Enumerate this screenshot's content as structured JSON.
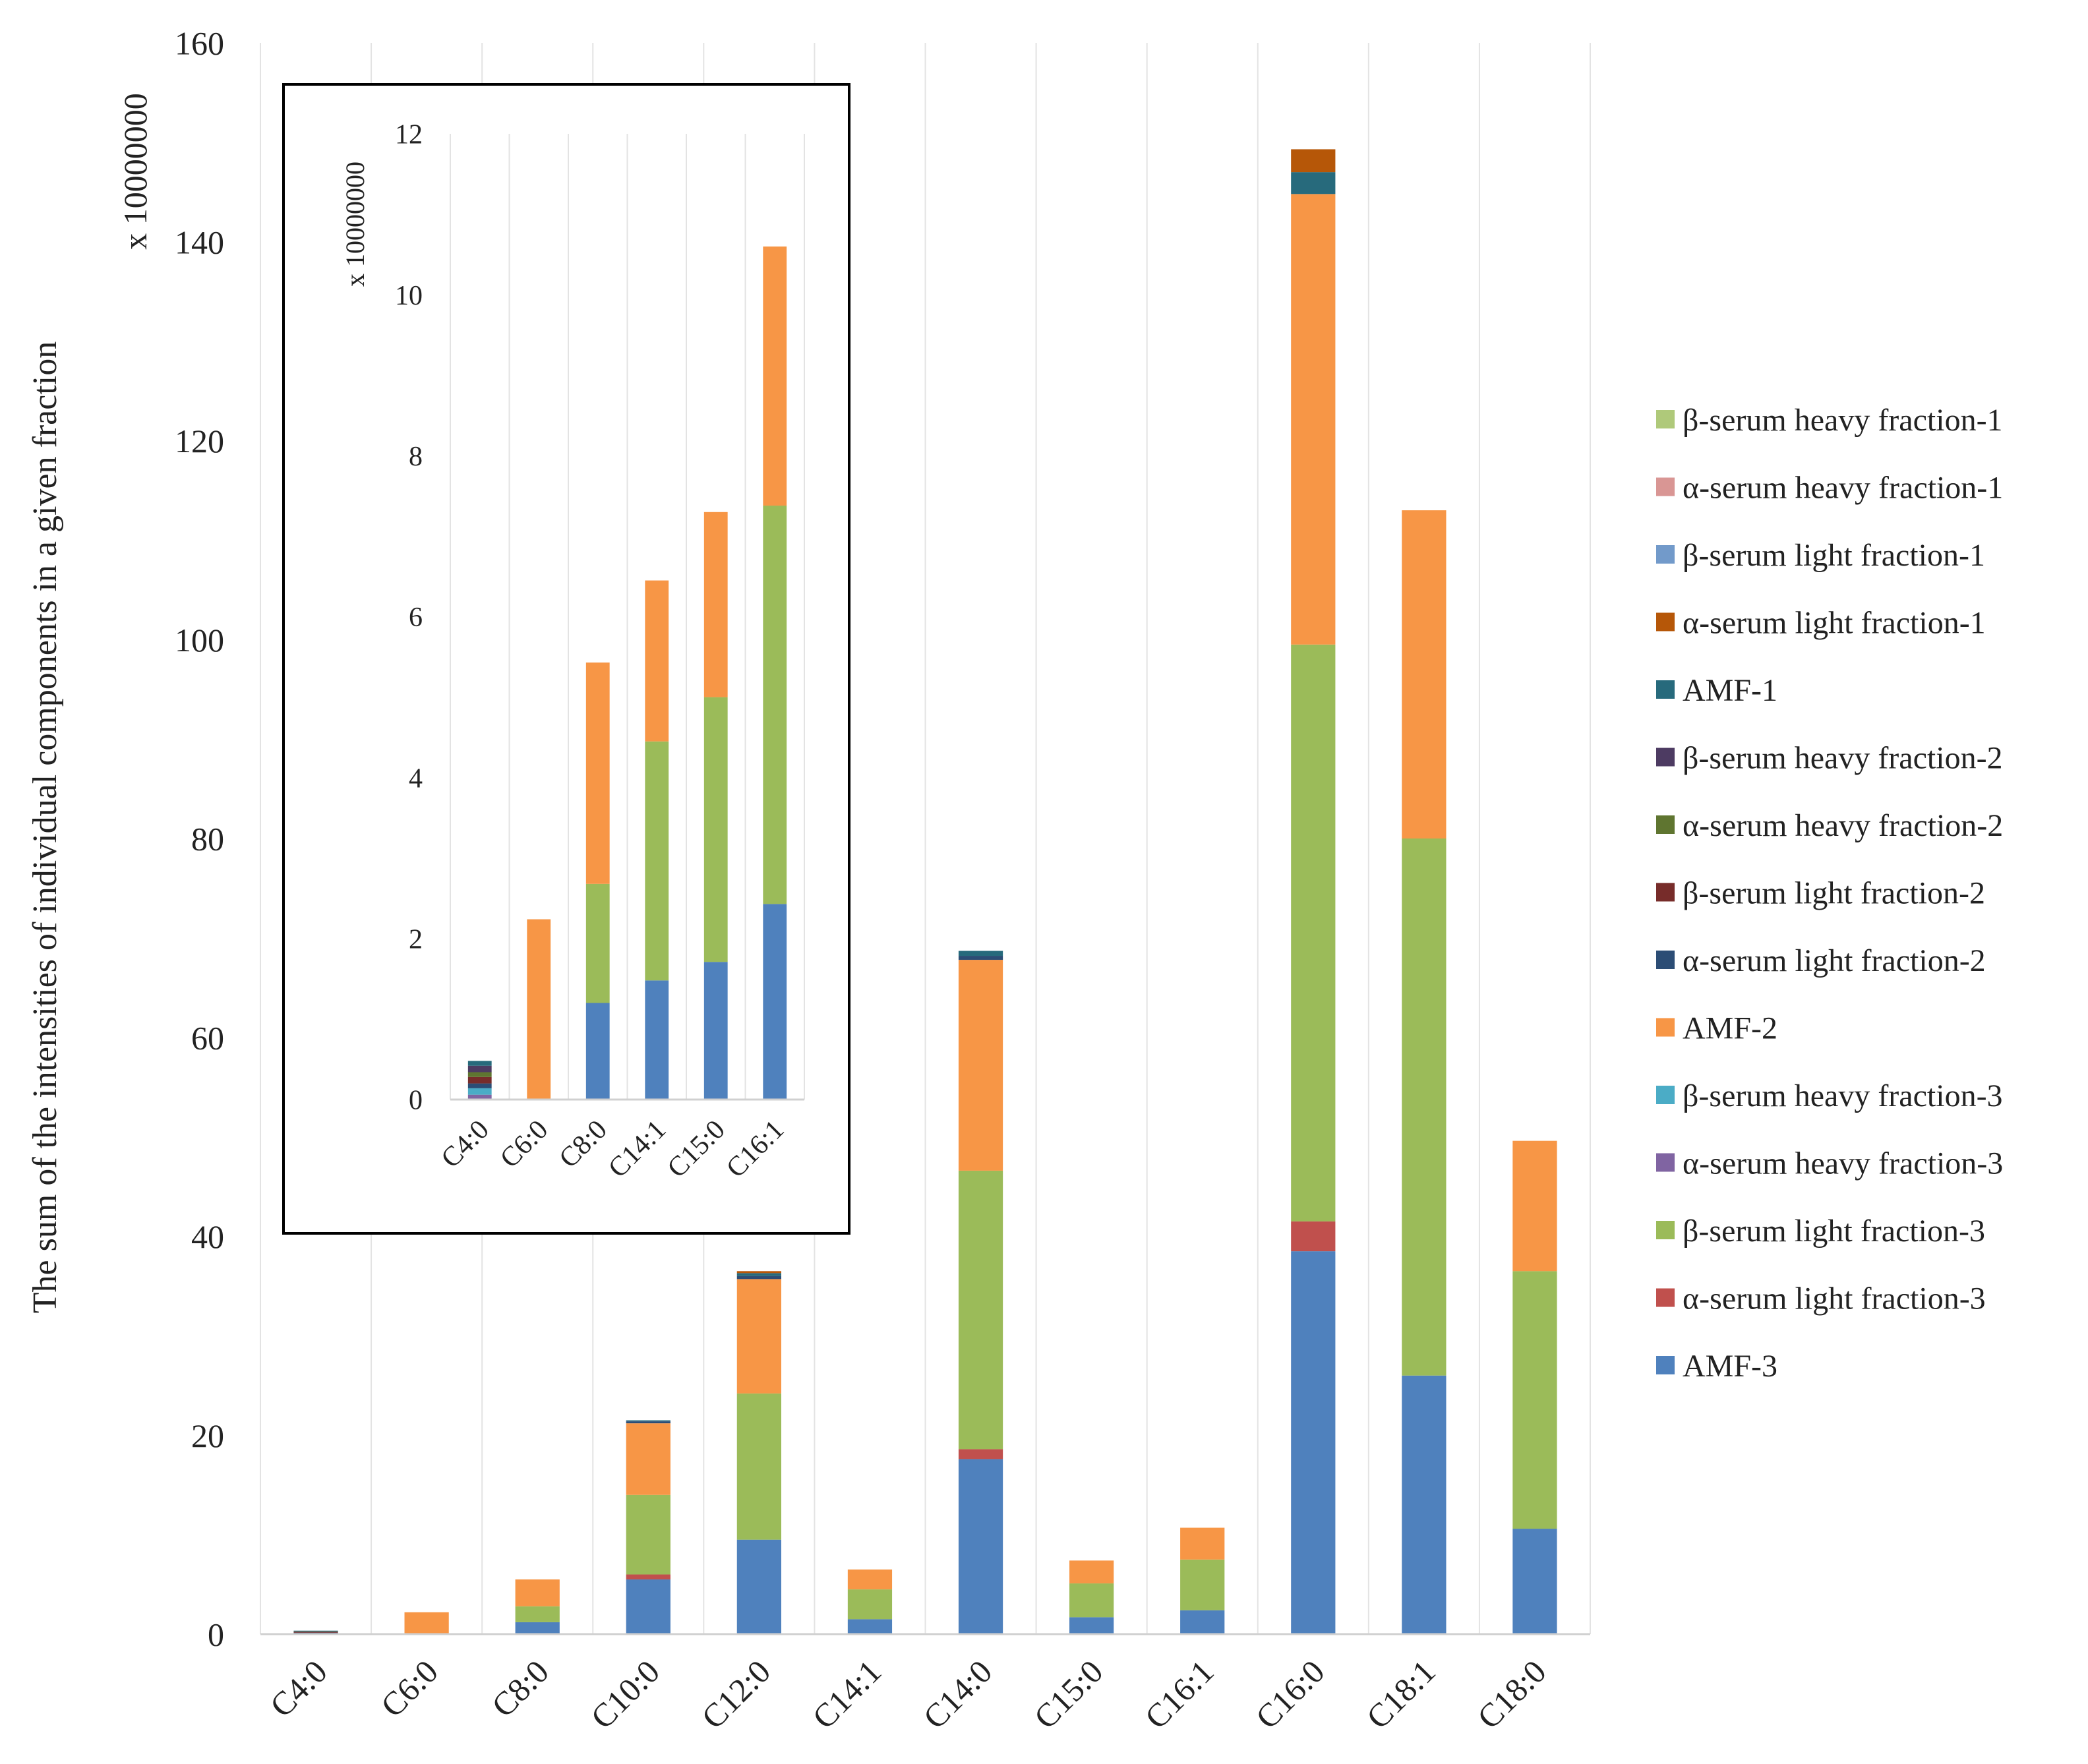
{
  "chart_data": [
    {
      "type": "bar",
      "stacked": true,
      "title": "",
      "xlabel": "",
      "ylabel": "The sum of the intensities of individual components in a given fraction",
      "yunit": "x 10000000",
      "ylim": [
        0,
        160
      ],
      "yticks": [
        0,
        20,
        40,
        60,
        80,
        100,
        120,
        140,
        160
      ],
      "grid": "vertical",
      "legend_position": "right",
      "categories": [
        "C4:0",
        "C6:0",
        "C8:0",
        "C10:0",
        "C12:0",
        "C14:1",
        "C14:0",
        "C15:0",
        "C16:1",
        "C16:0",
        "C18:1",
        "C18:0"
      ],
      "series": [
        {
          "name": "AMF-3",
          "color": "#4f81bd",
          "values": [
            0.0,
            0.0,
            1.2,
            5.5,
            9.5,
            1.5,
            17.6,
            1.7,
            2.4,
            38.5,
            26.0,
            10.6
          ]
        },
        {
          "name": "α-serum light fraction-3",
          "color": "#c0504d",
          "values": [
            0.0,
            0.0,
            0.0,
            0.5,
            0.0,
            0.0,
            1.0,
            0.0,
            0.0,
            3.0,
            0.0,
            0.0
          ]
        },
        {
          "name": "β-serum light fraction-3",
          "color": "#9bbb59",
          "values": [
            0.0,
            0.0,
            1.6,
            8.0,
            14.7,
            3.0,
            28.0,
            3.4,
            5.1,
            58.0,
            54.0,
            25.9
          ]
        },
        {
          "name": "α-serum heavy fraction-3",
          "color": "#8064a2",
          "values": [
            0.05,
            0.0,
            0.0,
            0.0,
            0.0,
            0.0,
            0.0,
            0.0,
            0.0,
            0.0,
            0.0,
            0.0
          ]
        },
        {
          "name": "β-serum heavy fraction-3",
          "color": "#4bacc6",
          "values": [
            0.05,
            0.0,
            0.0,
            0.0,
            0.0,
            0.0,
            0.0,
            0.0,
            0.0,
            0.0,
            0.0,
            0.0
          ]
        },
        {
          "name": "AMF-2",
          "color": "#f79646",
          "values": [
            0.0,
            2.2,
            2.7,
            7.2,
            11.5,
            2.0,
            21.2,
            2.3,
            3.2,
            45.3,
            33.0,
            13.1
          ]
        },
        {
          "name": "α-serum light fraction-2",
          "color": "#2c4d75",
          "values": [
            0.05,
            0.0,
            0.0,
            0.2,
            0.3,
            0.0,
            0.4,
            0.0,
            0.0,
            0.0,
            0.0,
            0.0
          ]
        },
        {
          "name": "β-serum light fraction-2",
          "color": "#772c2a",
          "values": [
            0.05,
            0.0,
            0.0,
            0.0,
            0.0,
            0.0,
            0.0,
            0.0,
            0.0,
            0.0,
            0.0,
            0.0
          ]
        },
        {
          "name": "α-serum heavy fraction-2",
          "color": "#5f7530",
          "values": [
            0.05,
            0.0,
            0.0,
            0.0,
            0.0,
            0.0,
            0.0,
            0.0,
            0.0,
            0.0,
            0.0,
            0.0
          ]
        },
        {
          "name": "β-serum heavy fraction-2",
          "color": "#4d3b62",
          "values": [
            0.05,
            0.0,
            0.0,
            0.0,
            0.0,
            0.0,
            0.0,
            0.0,
            0.0,
            0.0,
            0.0,
            0.0
          ]
        },
        {
          "name": "AMF-1",
          "color": "#276a7c",
          "values": [
            0.05,
            0.0,
            0.0,
            0.1,
            0.3,
            0.0,
            0.5,
            0.0,
            0.0,
            2.2,
            0.0,
            0.0
          ]
        },
        {
          "name": "α-serum light fraction-1",
          "color": "#b65708",
          "values": [
            0.0,
            0.0,
            0.0,
            0.0,
            0.2,
            0.0,
            0.0,
            0.0,
            0.0,
            2.3,
            0.0,
            0.0
          ]
        },
        {
          "name": "β-serum light fraction-1",
          "color": "#729aca",
          "values": [
            0.0,
            0.0,
            0.0,
            0.0,
            0.0,
            0.0,
            0.0,
            0.0,
            0.0,
            0.0,
            0.0,
            0.0
          ]
        },
        {
          "name": "α-serum heavy fraction-1",
          "color": "#d99694",
          "values": [
            0.0,
            0.0,
            0.0,
            0.0,
            0.0,
            0.0,
            0.0,
            0.0,
            0.0,
            0.0,
            0.0,
            0.0
          ]
        },
        {
          "name": "β-serum heavy fraction-1",
          "color": "#afc97a",
          "values": [
            0.0,
            0.0,
            0.0,
            0.0,
            0.0,
            0.0,
            0.0,
            0.0,
            0.0,
            0.0,
            0.0,
            0.0
          ]
        }
      ]
    },
    {
      "type": "bar",
      "stacked": true,
      "inset": true,
      "title": "",
      "ylabel": "",
      "yunit": "x 10000000",
      "ylim": [
        0,
        12
      ],
      "yticks": [
        0,
        2,
        4,
        6,
        8,
        10,
        12
      ],
      "grid": "vertical",
      "categories": [
        "C4:0",
        "C6:0",
        "C8:0",
        "C14:1",
        "C15:0",
        "C16:1"
      ],
      "series": [
        {
          "name": "AMF-3",
          "color": "#4f81bd",
          "values": [
            0.0,
            0.0,
            1.2,
            1.48,
            1.71,
            2.43
          ]
        },
        {
          "name": "α-serum light fraction-3",
          "color": "#c0504d",
          "values": [
            0.0,
            0.0,
            0.0,
            0.0,
            0.0,
            0.0
          ]
        },
        {
          "name": "β-serum light fraction-3",
          "color": "#9bbb59",
          "values": [
            0.0,
            0.0,
            1.48,
            2.97,
            3.29,
            4.95
          ]
        },
        {
          "name": "α-serum heavy fraction-3",
          "color": "#8064a2",
          "values": [
            0.06,
            0.0,
            0.0,
            0.0,
            0.0,
            0.0
          ]
        },
        {
          "name": "β-serum heavy fraction-3",
          "color": "#4bacc6",
          "values": [
            0.08,
            0.0,
            0.0,
            0.0,
            0.0,
            0.0
          ]
        },
        {
          "name": "AMF-2",
          "color": "#f79646",
          "values": [
            0.0,
            2.24,
            2.75,
            2.0,
            2.3,
            3.22
          ]
        },
        {
          "name": "α-serum light fraction-2",
          "color": "#2c4d75",
          "values": [
            0.06,
            0.0,
            0.0,
            0.0,
            0.0,
            0.0
          ]
        },
        {
          "name": "β-serum light fraction-2",
          "color": "#772c2a",
          "values": [
            0.08,
            0.0,
            0.0,
            0.0,
            0.0,
            0.0
          ]
        },
        {
          "name": "α-serum heavy fraction-2",
          "color": "#5f7530",
          "values": [
            0.06,
            0.0,
            0.0,
            0.0,
            0.0,
            0.0
          ]
        },
        {
          "name": "β-serum heavy fraction-2",
          "color": "#4d3b62",
          "values": [
            0.08,
            0.0,
            0.0,
            0.0,
            0.0,
            0.0
          ]
        },
        {
          "name": "AMF-1",
          "color": "#276a7c",
          "values": [
            0.06,
            0.0,
            0.0,
            0.0,
            0.0,
            0.0
          ]
        }
      ]
    }
  ],
  "legend": [
    {
      "label": "β-serum heavy fraction-1",
      "color": "#afc97a"
    },
    {
      "label": "α-serum heavy fraction-1",
      "color": "#d99694"
    },
    {
      "label": "β-serum light fraction-1",
      "color": "#729aca"
    },
    {
      "label": "α-serum light fraction-1",
      "color": "#b65708"
    },
    {
      "label": "AMF-1",
      "color": "#276a7c"
    },
    {
      "label": "β-serum heavy fraction-2",
      "color": "#4d3b62"
    },
    {
      "label": "α-serum heavy fraction-2",
      "color": "#5f7530"
    },
    {
      "label": "β-serum light fraction-2",
      "color": "#772c2a"
    },
    {
      "label": "α-serum light fraction-2",
      "color": "#2c4d75"
    },
    {
      "label": "AMF-2",
      "color": "#f79646"
    },
    {
      "label": "β-serum heavy fraction-3",
      "color": "#4bacc6"
    },
    {
      "label": "α-serum heavy fraction-3",
      "color": "#8064a2"
    },
    {
      "label": "β-serum light fraction-3",
      "color": "#9bbb59"
    },
    {
      "label": "α-serum light fraction-3",
      "color": "#c0504d"
    },
    {
      "label": "AMF-3",
      "color": "#4f81bd"
    }
  ]
}
